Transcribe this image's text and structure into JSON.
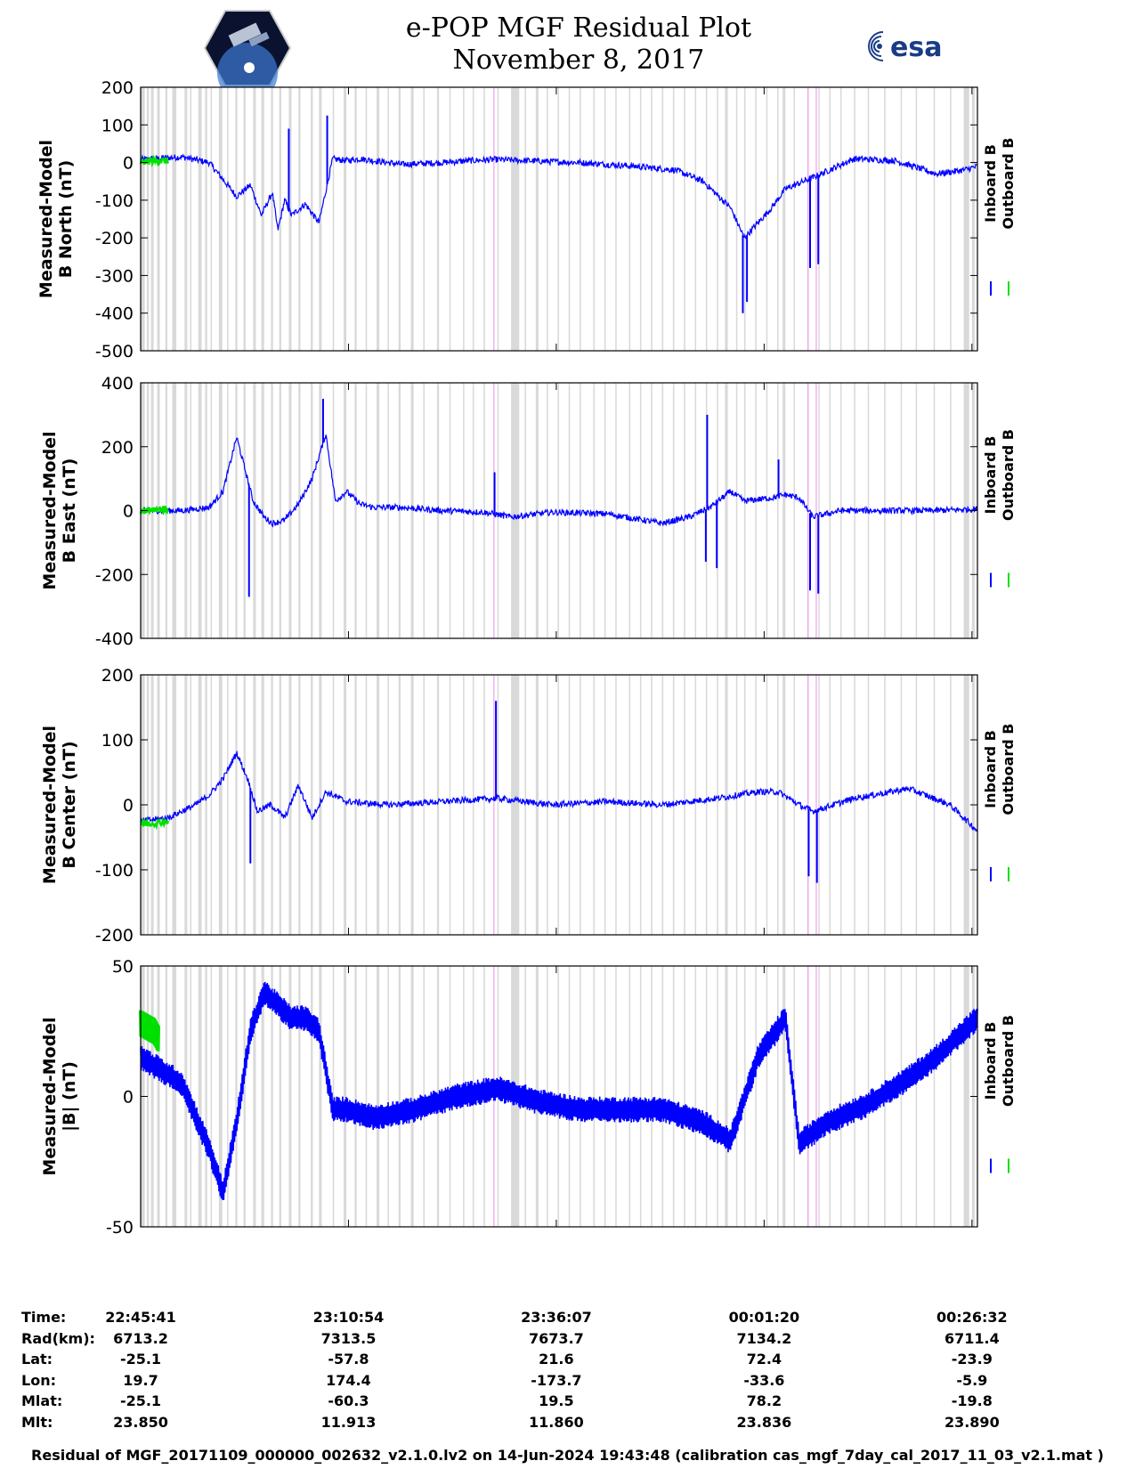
{
  "header": {
    "title_line1": "e-POP MGF Residual Plot",
    "title_line2": "November 8, 2017",
    "mission_logo_icon": "cassiope-mission-patch-icon",
    "esa_logo_text": "esa"
  },
  "colors": {
    "inboard": "#0000ff",
    "outboard": "#00e000",
    "gap_shading": "#d9d9d9",
    "event_marker": "#f0a0f0"
  },
  "legend": {
    "inboard": "Inboard B",
    "outboard": "Outboard B"
  },
  "chart_data": [
    {
      "type": "line",
      "ylabel": [
        "Measured-Model",
        "B North (nT)"
      ],
      "ylim": [
        -500,
        200
      ],
      "yticks": [
        200,
        100,
        0,
        -100,
        -200,
        -300,
        -400,
        -500
      ],
      "x_range": [
        0,
        6100
      ],
      "series": [
        {
          "name": "Inboard B",
          "x": [
            0,
            300,
            500,
            700,
            800,
            880,
            960,
            1000,
            1050,
            1100,
            1200,
            1300,
            1400,
            1500,
            1600,
            1700,
            1900,
            2200,
            2400,
            2600,
            2800,
            3200,
            3600,
            3900,
            4100,
            4300,
            4400,
            4600,
            4700,
            4900,
            5200,
            5500,
            5800,
            6000,
            6100
          ],
          "y": [
            8,
            15,
            0,
            -90,
            -60,
            -140,
            -80,
            -180,
            -100,
            -140,
            -110,
            -160,
            10,
            5,
            10,
            5,
            -5,
            0,
            5,
            8,
            5,
            0,
            -10,
            -20,
            -50,
            -120,
            -200,
            -120,
            -70,
            -40,
            10,
            5,
            -30,
            -20,
            -10
          ]
        },
        {
          "name": "Outboard B",
          "x": [
            0,
            100,
            200
          ],
          "y": [
            0,
            5,
            5
          ]
        }
      ],
      "spikes": [
        {
          "x": 1080,
          "y": 90
        },
        {
          "x": 1360,
          "y": 125
        },
        {
          "x": 4390,
          "y": -400
        },
        {
          "x": 4420,
          "y": -370
        },
        {
          "x": 4880,
          "y": -280
        },
        {
          "x": 4940,
          "y": -270
        }
      ]
    },
    {
      "type": "line",
      "ylabel": [
        "Measured-Model",
        "B East (nT)"
      ],
      "ylim": [
        -400,
        400
      ],
      "yticks": [
        400,
        200,
        0,
        -200,
        -400
      ],
      "x_range": [
        0,
        6100
      ],
      "series": [
        {
          "name": "Inboard B",
          "x": [
            0,
            300,
            500,
            600,
            700,
            820,
            900,
            960,
            1050,
            1150,
            1250,
            1350,
            1420,
            1500,
            1600,
            1700,
            1900,
            2200,
            2500,
            2700,
            3000,
            3400,
            3800,
            4000,
            4150,
            4300,
            4400,
            4600,
            4700,
            4800,
            4900,
            5100,
            5400,
            5800,
            6100
          ],
          "y": [
            0,
            0,
            10,
            60,
            230,
            30,
            -20,
            -40,
            -30,
            20,
            100,
            240,
            30,
            60,
            20,
            10,
            10,
            0,
            -5,
            -20,
            -5,
            -10,
            -40,
            -20,
            10,
            60,
            30,
            40,
            50,
            40,
            -20,
            0,
            0,
            0,
            5
          ]
        },
        {
          "name": "Outboard B",
          "x": [
            0,
            100,
            200
          ],
          "y": [
            0,
            5,
            5
          ]
        }
      ],
      "spikes": [
        {
          "x": 790,
          "y": -270
        },
        {
          "x": 1330,
          "y": 350
        },
        {
          "x": 2580,
          "y": 120
        },
        {
          "x": 4130,
          "y": 300
        },
        {
          "x": 4120,
          "y": -160
        },
        {
          "x": 4200,
          "y": -180
        },
        {
          "x": 4650,
          "y": 160
        },
        {
          "x": 4880,
          "y": -250
        },
        {
          "x": 4940,
          "y": -260
        }
      ]
    },
    {
      "type": "line",
      "ylabel": [
        "Measured-Model",
        "B Center (nT)"
      ],
      "ylim": [
        -200,
        200
      ],
      "yticks": [
        200,
        100,
        0,
        -100,
        -200
      ],
      "x_range": [
        0,
        6100
      ],
      "series": [
        {
          "name": "Inboard B",
          "x": [
            0,
            200,
            400,
            500,
            600,
            700,
            780,
            850,
            950,
            1050,
            1150,
            1250,
            1350,
            1500,
            1800,
            2200,
            2600,
            3000,
            3400,
            3800,
            4200,
            4500,
            4650,
            4800,
            4900,
            5200,
            5600,
            5900,
            6100
          ],
          "y": [
            -25,
            -20,
            0,
            15,
            40,
            80,
            40,
            -10,
            0,
            -20,
            30,
            -20,
            20,
            5,
            0,
            5,
            10,
            0,
            5,
            0,
            10,
            20,
            20,
            0,
            -10,
            10,
            25,
            0,
            -40
          ]
        },
        {
          "name": "Outboard B",
          "x": [
            0,
            100,
            200
          ],
          "y": [
            -30,
            -28,
            -25
          ]
        }
      ],
      "spikes": [
        {
          "x": 800,
          "y": -90
        },
        {
          "x": 2590,
          "y": 160
        },
        {
          "x": 4870,
          "y": -110
        },
        {
          "x": 4930,
          "y": -120
        }
      ]
    },
    {
      "type": "line",
      "ylabel": [
        "Measured-Model",
        "|B| (nT)"
      ],
      "ylim": [
        -50,
        50
      ],
      "yticks": [
        50,
        0,
        -50
      ],
      "x_range": [
        0,
        6100
      ],
      "band_halfwidth": 5,
      "series": [
        {
          "name": "Inboard B",
          "x": [
            0,
            300,
            500,
            600,
            700,
            800,
            900,
            1100,
            1200,
            1300,
            1400,
            1500,
            1700,
            2000,
            2300,
            2600,
            2900,
            3200,
            3500,
            3800,
            4100,
            4300,
            4500,
            4700,
            4800,
            5000,
            5300,
            5600,
            5800,
            6000,
            6100
          ],
          "y": [
            15,
            5,
            -20,
            -37,
            -10,
            25,
            40,
            30,
            30,
            25,
            -5,
            -5,
            -8,
            -5,
            0,
            3,
            -2,
            -5,
            -5,
            -5,
            -10,
            -17,
            15,
            30,
            -18,
            -10,
            -3,
            7,
            15,
            25,
            30
          ]
        },
        {
          "name": "Outboard B",
          "x": [
            0,
            100,
            130
          ],
          "y": [
            28,
            25,
            22
          ]
        }
      ],
      "spikes": []
    }
  ],
  "gap_intervals": [
    [
      0,
      30
    ],
    [
      45,
      60
    ],
    [
      75,
      95
    ],
    [
      120,
      140
    ],
    [
      180,
      195
    ],
    [
      230,
      260
    ],
    [
      320,
      340
    ],
    [
      360,
      370
    ],
    [
      420,
      445
    ],
    [
      470,
      485
    ],
    [
      510,
      520
    ],
    [
      570,
      595
    ],
    [
      630,
      640
    ],
    [
      690,
      705
    ],
    [
      750,
      765
    ],
    [
      820,
      840
    ],
    [
      880,
      900
    ],
    [
      950,
      965
    ],
    [
      1010,
      1025
    ],
    [
      1080,
      1100
    ],
    [
      1150,
      1165
    ],
    [
      1240,
      1255
    ],
    [
      1300,
      1320
    ],
    [
      1400,
      1410
    ],
    [
      1480,
      1500
    ],
    [
      1560,
      1575
    ],
    [
      1640,
      1650
    ],
    [
      1720,
      1740
    ],
    [
      1800,
      1810
    ],
    [
      1880,
      1895
    ],
    [
      1970,
      1990
    ],
    [
      2060,
      2070
    ],
    [
      2160,
      2175
    ],
    [
      2250,
      2260
    ],
    [
      2350,
      2360
    ],
    [
      2420,
      2430
    ],
    [
      2500,
      2510
    ],
    [
      2600,
      2610
    ],
    [
      2700,
      2760
    ],
    [
      2800,
      2810
    ],
    [
      2880,
      2900
    ],
    [
      2960,
      2970
    ],
    [
      3040,
      3050
    ],
    [
      3120,
      3130
    ],
    [
      3200,
      3210
    ],
    [
      3300,
      3310
    ],
    [
      3380,
      3390
    ],
    [
      3460,
      3470
    ],
    [
      3560,
      3570
    ],
    [
      3640,
      3650
    ],
    [
      3720,
      3730
    ],
    [
      3800,
      3810
    ],
    [
      3880,
      3890
    ],
    [
      3960,
      3970
    ],
    [
      4040,
      4050
    ],
    [
      4120,
      4130
    ],
    [
      4200,
      4210
    ],
    [
      4260,
      4280
    ],
    [
      4340,
      4350
    ],
    [
      4400,
      4410
    ],
    [
      4480,
      4490
    ],
    [
      4560,
      4570
    ],
    [
      4640,
      4650
    ],
    [
      4680,
      4700
    ],
    [
      4760,
      4770
    ],
    [
      4860,
      4870
    ],
    [
      4940,
      4950
    ],
    [
      5020,
      5030
    ],
    [
      5100,
      5110
    ],
    [
      5200,
      5210
    ],
    [
      5300,
      5310
    ],
    [
      5420,
      5430
    ],
    [
      5540,
      5550
    ],
    [
      5650,
      5660
    ],
    [
      5780,
      5790
    ],
    [
      5900,
      5910
    ],
    [
      6000,
      6040
    ],
    [
      6060,
      6080
    ]
  ],
  "event_markers": [
    [
      2570,
      2580
    ],
    [
      4860,
      4870
    ],
    [
      4920,
      4930
    ]
  ],
  "x_axis": {
    "row_labels": [
      "Time:",
      "Rad(km):",
      "Lat:",
      "Lon:",
      "Mlat:",
      "Mlt:"
    ],
    "ticks": [
      {
        "x": 0,
        "values": [
          "22:45:41",
          "6713.2",
          "-25.1",
          "19.7",
          "-25.1",
          "23.850"
        ]
      },
      {
        "x": 1515,
        "values": [
          "23:10:54",
          "7313.5",
          "-57.8",
          "174.4",
          "-60.3",
          "11.913"
        ]
      },
      {
        "x": 3030,
        "values": [
          "23:36:07",
          "7673.7",
          "21.6",
          "-173.7",
          "19.5",
          "11.860"
        ]
      },
      {
        "x": 4545,
        "values": [
          "00:01:20",
          "7134.2",
          "72.4",
          "-33.6",
          "78.2",
          "23.836"
        ]
      },
      {
        "x": 6060,
        "values": [
          "00:26:32",
          "6711.4",
          "-23.9",
          "-5.9",
          "-19.8",
          "23.890"
        ]
      }
    ]
  },
  "footer": "Residual of MGF_20171109_000000_002632_v2.1.0.lv2 on 14-Jun-2024 19:43:48 (calibration cas_mgf_7day_cal_2017_11_03_v2.1.mat )"
}
